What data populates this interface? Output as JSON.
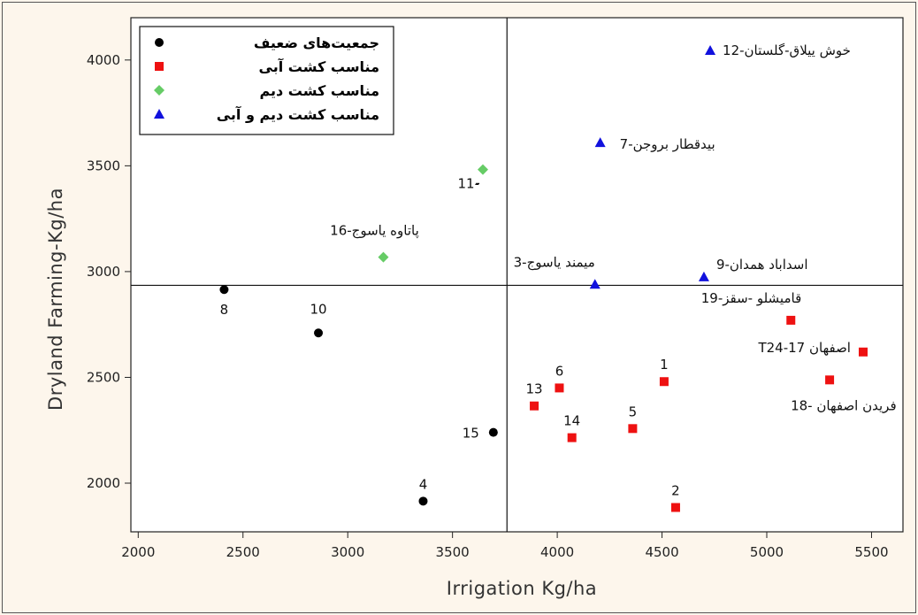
{
  "chart_data": {
    "type": "scatter",
    "title": "",
    "xlabel": "Irrigation Kg/ha",
    "ylabel": "Dryland Farming-Kg/ha",
    "xlim": [
      1965,
      5650
    ],
    "ylim": [
      1770,
      4200
    ],
    "xticks": [
      2000,
      2500,
      3000,
      3500,
      4000,
      4500,
      5000,
      5500
    ],
    "yticks": [
      2000,
      2500,
      3000,
      3500,
      4000
    ],
    "grid": false,
    "legend_position": "top-left",
    "reference_lines": {
      "x": 3760,
      "y": 2935
    },
    "series": [
      {
        "name": "جمعیت‌های ضعیف",
        "marker": "circle",
        "color": "#000000",
        "points": [
          {
            "x": 2410,
            "y": 2915,
            "label": "8"
          },
          {
            "x": 2860,
            "y": 2710,
            "label": "10"
          },
          {
            "x": 3360,
            "y": 1915,
            "label": "4"
          },
          {
            "x": 3695,
            "y": 2240,
            "label": "15"
          }
        ]
      },
      {
        "name": "مناسب کشت آبی",
        "marker": "square",
        "color": "#ee1111",
        "points": [
          {
            "x": 3890,
            "y": 2365,
            "label": "13"
          },
          {
            "x": 4010,
            "y": 2450,
            "label": "6"
          },
          {
            "x": 4070,
            "y": 2215,
            "label": "14"
          },
          {
            "x": 4360,
            "y": 2258,
            "label": "5"
          },
          {
            "x": 4510,
            "y": 2480,
            "label": "1"
          },
          {
            "x": 4565,
            "y": 1885,
            "label": "2"
          },
          {
            "x": 5115,
            "y": 2770,
            "label": "قامیشلو -سقز-19"
          },
          {
            "x": 5300,
            "y": 2488,
            "label": "فریدن اصفهان -18"
          },
          {
            "x": 5460,
            "y": 2620,
            "label": "T24-اصفهان 17"
          }
        ]
      },
      {
        "name": "مناسب کشت دیم",
        "marker": "diamond",
        "color": "#66cc66",
        "points": [
          {
            "x": 3170,
            "y": 3068,
            "label": "پاتاوه یاسوج-16"
          },
          {
            "x": 3645,
            "y": 3482,
            "label": "11-"
          }
        ]
      },
      {
        "name": "مناسب کشت دیم و آبی",
        "marker": "triangle",
        "color": "#1111dd",
        "points": [
          {
            "x": 4180,
            "y": 2940,
            "label": "میمند یاسوج-3"
          },
          {
            "x": 4205,
            "y": 3610,
            "label": "بیدقطار بروجن-7"
          },
          {
            "x": 4700,
            "y": 2975,
            "label": "اسداباد همدان-9"
          },
          {
            "x": 4730,
            "y": 4045,
            "label": "خوش ییلاق-گلستان-12"
          }
        ]
      }
    ],
    "annotations": [
      {
        "text": "-",
        "x": 3620,
        "y": 3400
      }
    ]
  }
}
